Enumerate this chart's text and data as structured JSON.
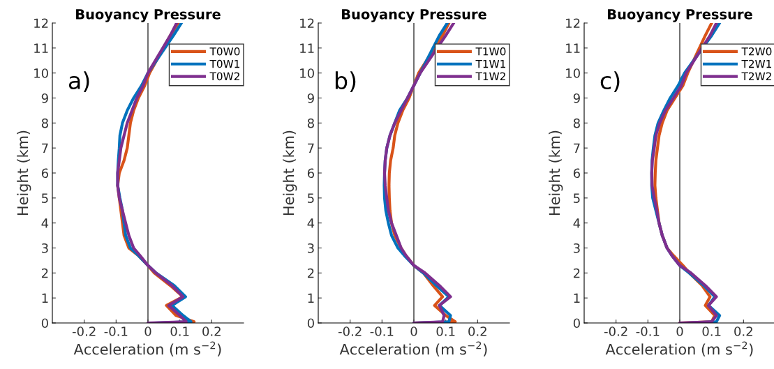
{
  "chart_data": [
    {
      "type": "line",
      "title": "Buoyancy Pressure",
      "xlabel": "Acceleration (m s$^{−2}$)",
      "ylabel": "Height (km)",
      "annotations": [
        "a)"
      ],
      "xlim": [
        -0.3,
        0.3
      ],
      "xticks": [
        -0.2,
        -0.1,
        0,
        0.1,
        0.2
      ],
      "ylim": [
        0,
        12
      ],
      "yticks": [
        0,
        1,
        2,
        3,
        4,
        5,
        6,
        7,
        8,
        9,
        10,
        11,
        12
      ],
      "grid": false,
      "legend": "top right",
      "ref_lines": [
        {
          "axis": "x",
          "value": 0,
          "color": "#333333"
        }
      ],
      "series": [
        {
          "name": "T0W0",
          "color": "#d95319",
          "x": [
            0.04,
            0.145,
            0.088,
            0.058,
            0.11,
            0.07,
            0.02,
            0,
            -0.03,
            -0.06,
            -0.075,
            -0.08,
            -0.085,
            -0.09,
            -0.095,
            -0.09,
            -0.075,
            -0.065,
            -0.06,
            -0.055,
            -0.045,
            -0.03,
            -0.01,
            0.005,
            0.07,
            0.095
          ],
          "values": [
            0,
            0.05,
            0.3,
            0.7,
            1.05,
            1.5,
            2,
            2.3,
            2.7,
            3,
            3.5,
            4,
            4.5,
            5,
            5.5,
            6,
            6.5,
            7,
            7.5,
            8,
            8.5,
            9,
            9.5,
            10,
            11.5,
            12
          ]
        },
        {
          "name": "T0W1",
          "color": "#0072bd",
          "x": [
            0.02,
            0.135,
            0.11,
            0.075,
            0.118,
            0.082,
            0.025,
            0,
            -0.03,
            -0.055,
            -0.07,
            -0.075,
            -0.08,
            -0.088,
            -0.095,
            -0.095,
            -0.093,
            -0.09,
            -0.088,
            -0.08,
            -0.065,
            -0.045,
            -0.02,
            0.0,
            0.08,
            0.105
          ],
          "values": [
            0,
            0.05,
            0.3,
            0.7,
            1.05,
            1.5,
            2,
            2.3,
            2.7,
            3,
            3.5,
            4,
            4.5,
            5,
            5.5,
            6,
            6.5,
            7,
            7.5,
            8,
            8.5,
            9,
            9.5,
            10,
            11.5,
            12
          ]
        },
        {
          "name": "T0W2",
          "color": "#7e2f8e",
          "x": [
            0,
            0.12,
            0.1,
            0.065,
            0.11,
            0.075,
            0.025,
            0,
            -0.025,
            -0.045,
            -0.06,
            -0.07,
            -0.08,
            -0.09,
            -0.095,
            -0.095,
            -0.09,
            -0.085,
            -0.075,
            -0.065,
            -0.05,
            -0.035,
            -0.015,
            0.0,
            0.07,
            0.09
          ],
          "values": [
            0,
            0.05,
            0.3,
            0.7,
            1.05,
            1.5,
            2,
            2.3,
            2.7,
            3,
            3.5,
            4,
            4.5,
            5,
            5.5,
            6,
            6.5,
            7,
            7.5,
            8,
            8.5,
            9,
            9.5,
            10,
            11.5,
            12
          ]
        }
      ]
    },
    {
      "type": "line",
      "title": "Buoyancy Pressure",
      "xlabel": "Acceleration (m s$^{−2}$)",
      "ylabel": "Height (km)",
      "annotations": [
        "b)"
      ],
      "xlim": [
        -0.3,
        0.3
      ],
      "xticks": [
        -0.2,
        -0.1,
        0,
        0.1,
        0.2
      ],
      "ylim": [
        0,
        12
      ],
      "yticks": [
        0,
        1,
        2,
        3,
        4,
        5,
        6,
        7,
        8,
        9,
        10,
        11,
        12
      ],
      "grid": false,
      "legend": "top right",
      "ref_lines": [
        {
          "axis": "x",
          "value": 0,
          "color": "#333333"
        }
      ],
      "series": [
        {
          "name": "T1W0",
          "color": "#d95319",
          "x": [
            0,
            0.13,
            0.1,
            0.065,
            0.09,
            0.06,
            0.03,
            0,
            -0.025,
            -0.04,
            -0.06,
            -0.07,
            -0.075,
            -0.077,
            -0.078,
            -0.077,
            -0.073,
            -0.065,
            -0.06,
            -0.05,
            -0.035,
            -0.015,
            0.0,
            0.015,
            0.09,
            0.11
          ],
          "values": [
            0,
            0.05,
            0.3,
            0.7,
            1.05,
            1.5,
            2,
            2.3,
            2.7,
            3,
            3.5,
            4,
            4.5,
            5,
            5.5,
            6,
            6.5,
            7,
            7.5,
            8,
            8.5,
            9,
            9.5,
            10,
            11.5,
            12
          ]
        },
        {
          "name": "T1W1",
          "color": "#0072bd",
          "x": [
            0,
            0.11,
            0.115,
            0.08,
            0.11,
            0.07,
            0.03,
            0,
            -0.03,
            -0.05,
            -0.07,
            -0.08,
            -0.088,
            -0.092,
            -0.093,
            -0.092,
            -0.09,
            -0.085,
            -0.075,
            -0.06,
            -0.045,
            -0.02,
            0,
            0.02,
            0.08,
            0.105
          ],
          "values": [
            0,
            0.05,
            0.3,
            0.7,
            1.05,
            1.5,
            2,
            2.3,
            2.7,
            3,
            3.5,
            4,
            4.5,
            5,
            5.5,
            6,
            6.5,
            7,
            7.5,
            8,
            8.5,
            9,
            9.5,
            10,
            11.5,
            12
          ]
        },
        {
          "name": "T1W2",
          "color": "#7e2f8e",
          "x": [
            0,
            0.09,
            0.095,
            0.08,
            0.115,
            0.08,
            0.035,
            0,
            -0.025,
            -0.04,
            -0.055,
            -0.07,
            -0.08,
            -0.085,
            -0.09,
            -0.092,
            -0.09,
            -0.085,
            -0.075,
            -0.06,
            -0.04,
            -0.02,
            0,
            0.02,
            0.1,
            0.125
          ],
          "values": [
            0,
            0.05,
            0.3,
            0.7,
            1.05,
            1.5,
            2,
            2.3,
            2.7,
            3,
            3.5,
            4,
            4.5,
            5,
            5.5,
            6,
            6.5,
            7,
            7.5,
            8,
            8.5,
            9,
            9.5,
            10,
            11.5,
            12
          ]
        }
      ]
    },
    {
      "type": "line",
      "title": "Buoyancy Pressure",
      "xlabel": "Acceleration (m s$^{−2}$)",
      "ylabel": "Height (km)",
      "annotations": [
        "c)"
      ],
      "xlim": [
        -0.3,
        0.3
      ],
      "xticks": [
        -0.2,
        -0.1,
        0,
        0.1,
        0.2
      ],
      "ylim": [
        0,
        12
      ],
      "yticks": [
        0,
        1,
        2,
        3,
        4,
        5,
        6,
        7,
        8,
        9,
        10,
        11,
        12
      ],
      "grid": false,
      "legend": "top right",
      "ref_lines": [
        {
          "axis": "x",
          "value": 0,
          "color": "#333333"
        }
      ],
      "series": [
        {
          "name": "T2W0",
          "color": "#d95319",
          "x": [
            0,
            0.1,
            0.11,
            0.08,
            0.095,
            0.07,
            0.03,
            0.01,
            -0.02,
            -0.04,
            -0.055,
            -0.065,
            -0.07,
            -0.075,
            -0.078,
            -0.077,
            -0.075,
            -0.07,
            -0.065,
            -0.055,
            -0.04,
            -0.015,
            0.01,
            0.025,
            0.08,
            0.1
          ],
          "values": [
            0,
            0.05,
            0.3,
            0.7,
            1.05,
            1.5,
            2,
            2.3,
            2.7,
            3,
            3.5,
            4,
            4.5,
            5,
            5.5,
            6,
            6.5,
            7,
            7.5,
            8,
            8.5,
            9,
            9.5,
            10,
            11.5,
            12
          ]
        },
        {
          "name": "T2W1",
          "color": "#0072bd",
          "x": [
            0.02,
            0.115,
            0.125,
            0.09,
            0.11,
            0.075,
            0.03,
            0,
            -0.025,
            -0.04,
            -0.055,
            -0.065,
            -0.075,
            -0.085,
            -0.088,
            -0.088,
            -0.087,
            -0.083,
            -0.078,
            -0.068,
            -0.05,
            -0.03,
            -0.005,
            0.015,
            0.1,
            0.125
          ],
          "values": [
            0,
            0.05,
            0.3,
            0.7,
            1.05,
            1.5,
            2,
            2.3,
            2.7,
            3,
            3.5,
            4,
            4.5,
            5,
            5.5,
            6,
            6.5,
            7,
            7.5,
            8,
            8.5,
            9,
            9.5,
            10,
            11.5,
            12
          ]
        },
        {
          "name": "T2W2",
          "color": "#7e2f8e",
          "x": [
            0,
            0.1,
            0.115,
            0.09,
            0.115,
            0.08,
            0.035,
            0,
            -0.025,
            -0.04,
            -0.055,
            -0.065,
            -0.072,
            -0.08,
            -0.087,
            -0.088,
            -0.086,
            -0.08,
            -0.075,
            -0.063,
            -0.045,
            -0.02,
            0.005,
            0.02,
            0.095,
            0.115
          ],
          "values": [
            0,
            0.05,
            0.3,
            0.7,
            1.05,
            1.5,
            2,
            2.3,
            2.7,
            3,
            3.5,
            4,
            4.5,
            5,
            5.5,
            6,
            6.5,
            7,
            7.5,
            8,
            8.5,
            9,
            9.5,
            10,
            11.5,
            12
          ]
        }
      ]
    }
  ]
}
